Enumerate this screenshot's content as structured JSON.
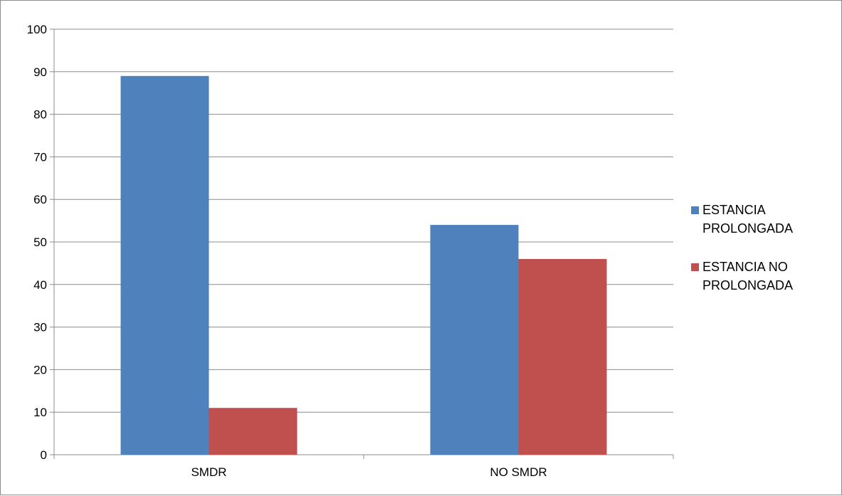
{
  "chart_data": {
    "type": "bar",
    "title": "",
    "xlabel": "",
    "ylabel": "",
    "categories": [
      "SMDR",
      "NO SMDR"
    ],
    "series": [
      {
        "name": "ESTANCIA PROLONGADA",
        "name_lines": [
          "ESTANCIA",
          "PROLONGADA"
        ],
        "values": [
          89,
          54
        ],
        "color": "#4f81bd"
      },
      {
        "name": "ESTANCIA NO PROLONGADA",
        "name_lines": [
          "ESTANCIA NO",
          "PROLONGADA"
        ],
        "values": [
          11,
          46
        ],
        "color": "#c0504d"
      }
    ],
    "ylim": [
      0,
      100
    ],
    "yticks": [
      0,
      10,
      20,
      30,
      40,
      50,
      60,
      70,
      80,
      90,
      100
    ],
    "grid": true,
    "legend_position": "right"
  }
}
